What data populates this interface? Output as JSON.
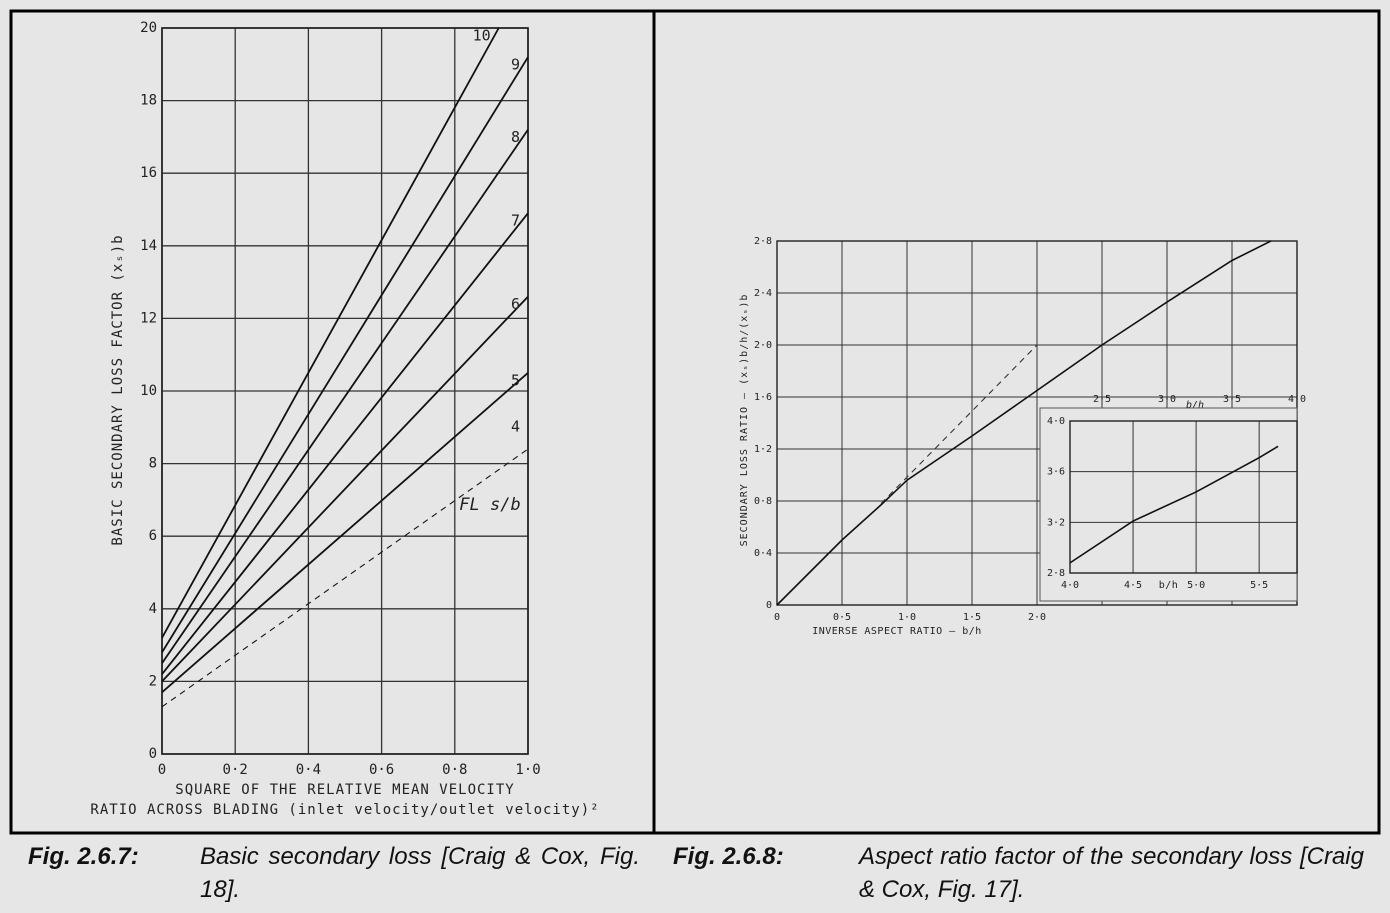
{
  "chart_data": [
    {
      "type": "line",
      "xlabel": [
        "SQUARE OF THE RELATIVE MEAN VELOCITY",
        "RATIO ACROSS BLADING (inlet velocity/outlet velocity)²"
      ],
      "ylabel": "BASIC SECONDARY LOSS FACTOR (xₛ)b",
      "annotations": [
        "FL s/b"
      ],
      "xlim": [
        0,
        1
      ],
      "ylim": [
        0,
        20
      ],
      "xticks": [
        0,
        {
          "value": 0.2,
          "label": "0·2"
        },
        {
          "value": 0.4,
          "label": "0·4"
        },
        {
          "value": 0.6,
          "label": "0·6"
        },
        {
          "value": 0.8,
          "label": "0·8"
        },
        {
          "value": 1,
          "label": "1·0"
        }
      ],
      "yticks": [
        0,
        2,
        4,
        6,
        8,
        10,
        12,
        14,
        16,
        18,
        20
      ],
      "grid": true,
      "series": [
        {
          "name": "10",
          "color": "#111111",
          "dashed": false,
          "x": [
            0,
            0.92
          ],
          "values": [
            3.2,
            20
          ]
        },
        {
          "name": "9",
          "color": "#111111",
          "dashed": false,
          "x": [
            0,
            1
          ],
          "values": [
            2.8,
            19.2
          ]
        },
        {
          "name": "8",
          "color": "#111111",
          "dashed": false,
          "x": [
            0,
            1
          ],
          "values": [
            2.5,
            17.2
          ]
        },
        {
          "name": "7",
          "color": "#111111",
          "dashed": false,
          "x": [
            0,
            1
          ],
          "values": [
            2.2,
            14.9
          ]
        },
        {
          "name": "6",
          "color": "#111111",
          "dashed": false,
          "x": [
            0,
            1
          ],
          "values": [
            2.0,
            12.6
          ]
        },
        {
          "name": "5",
          "color": "#111111",
          "dashed": false,
          "x": [
            0,
            1
          ],
          "values": [
            1.7,
            10.5
          ]
        },
        {
          "name": "4",
          "color": "#111111",
          "dashed": true,
          "x": [
            0,
            1
          ],
          "values": [
            1.3,
            8.4
          ]
        }
      ]
    },
    {
      "type": "line",
      "xlabel": [
        "INVERSE ASPECT RATIO — b/h"
      ],
      "ylabel": "SECONDARY LOSS RATIO — (xₛ)b/h/(xₛ)b",
      "annotations": [
        "b/h"
      ],
      "xlim": [
        0,
        4
      ],
      "ylim": [
        0,
        2.8
      ],
      "xticks": [
        0,
        {
          "value": 0.5,
          "label": "0·5"
        },
        {
          "value": 1,
          "label": "1·0"
        },
        {
          "value": 1.5,
          "label": "1·5"
        },
        {
          "value": 2,
          "label": "2·0"
        },
        {
          "value": 2.5,
          "label": "2·5"
        },
        {
          "value": 3,
          "label": "3·0"
        },
        {
          "value": 3.5,
          "label": "3·5"
        },
        {
          "value": 4,
          "label": "4·0"
        }
      ],
      "yticks": [
        0,
        {
          "value": 0.4,
          "label": "0·4"
        },
        {
          "value": 0.8,
          "label": "0·8"
        },
        {
          "value": 1.2,
          "label": "1·2"
        },
        {
          "value": 1.6,
          "label": "1·6"
        },
        {
          "value": 2,
          "label": "2·0"
        },
        {
          "value": 2.4,
          "label": "2·4"
        },
        {
          "value": 2.8,
          "label": "2·8"
        }
      ],
      "grid": true,
      "series": [
        {
          "color": "#111111",
          "dashed": false,
          "x": [
            0,
            0.5,
            0.8,
            1,
            1.5,
            2,
            2.5,
            3,
            3.5,
            3.8
          ],
          "values": [
            0,
            0.5,
            0.77,
            0.96,
            1.3,
            1.65,
            2.0,
            2.33,
            2.65,
            2.8
          ]
        },
        {
          "color": "#333333",
          "dashed": true,
          "x": [
            0.8,
            2
          ],
          "values": [
            0.78,
            2.0
          ]
        }
      ]
    },
    {
      "type": "line",
      "xlabel": [
        "b/h"
      ],
      "xlim": [
        4,
        5.8
      ],
      "ylim": [
        2.8,
        4
      ],
      "xticks": [
        {
          "value": 4,
          "label": "4·0"
        },
        {
          "value": 4.5,
          "label": "4·5"
        },
        {
          "value": 5,
          "label": "5·0"
        },
        {
          "value": 5.5,
          "label": "5·5"
        }
      ],
      "yticks": [
        {
          "value": 2.8,
          "label": "2·8"
        },
        {
          "value": 3.2,
          "label": "3·2"
        },
        {
          "value": 3.6,
          "label": "3·6"
        },
        {
          "value": 4,
          "label": "4·0"
        }
      ],
      "grid": true,
      "series": [
        {
          "color": "#111111",
          "dashed": false,
          "x": [
            4,
            4.5,
            5,
            5.5,
            5.65
          ],
          "values": [
            2.88,
            3.21,
            3.44,
            3.71,
            3.8
          ]
        }
      ]
    }
  ],
  "captions": [
    {
      "label": "Fig. 2.6.7:",
      "text": "Basic secondary loss [Craig & Cox, Fig. 18]."
    },
    {
      "label": "Fig. 2.6.8:",
      "text": "Aspect ratio factor of the secondary loss [Craig & Cox, Fig. 17]."
    }
  ]
}
